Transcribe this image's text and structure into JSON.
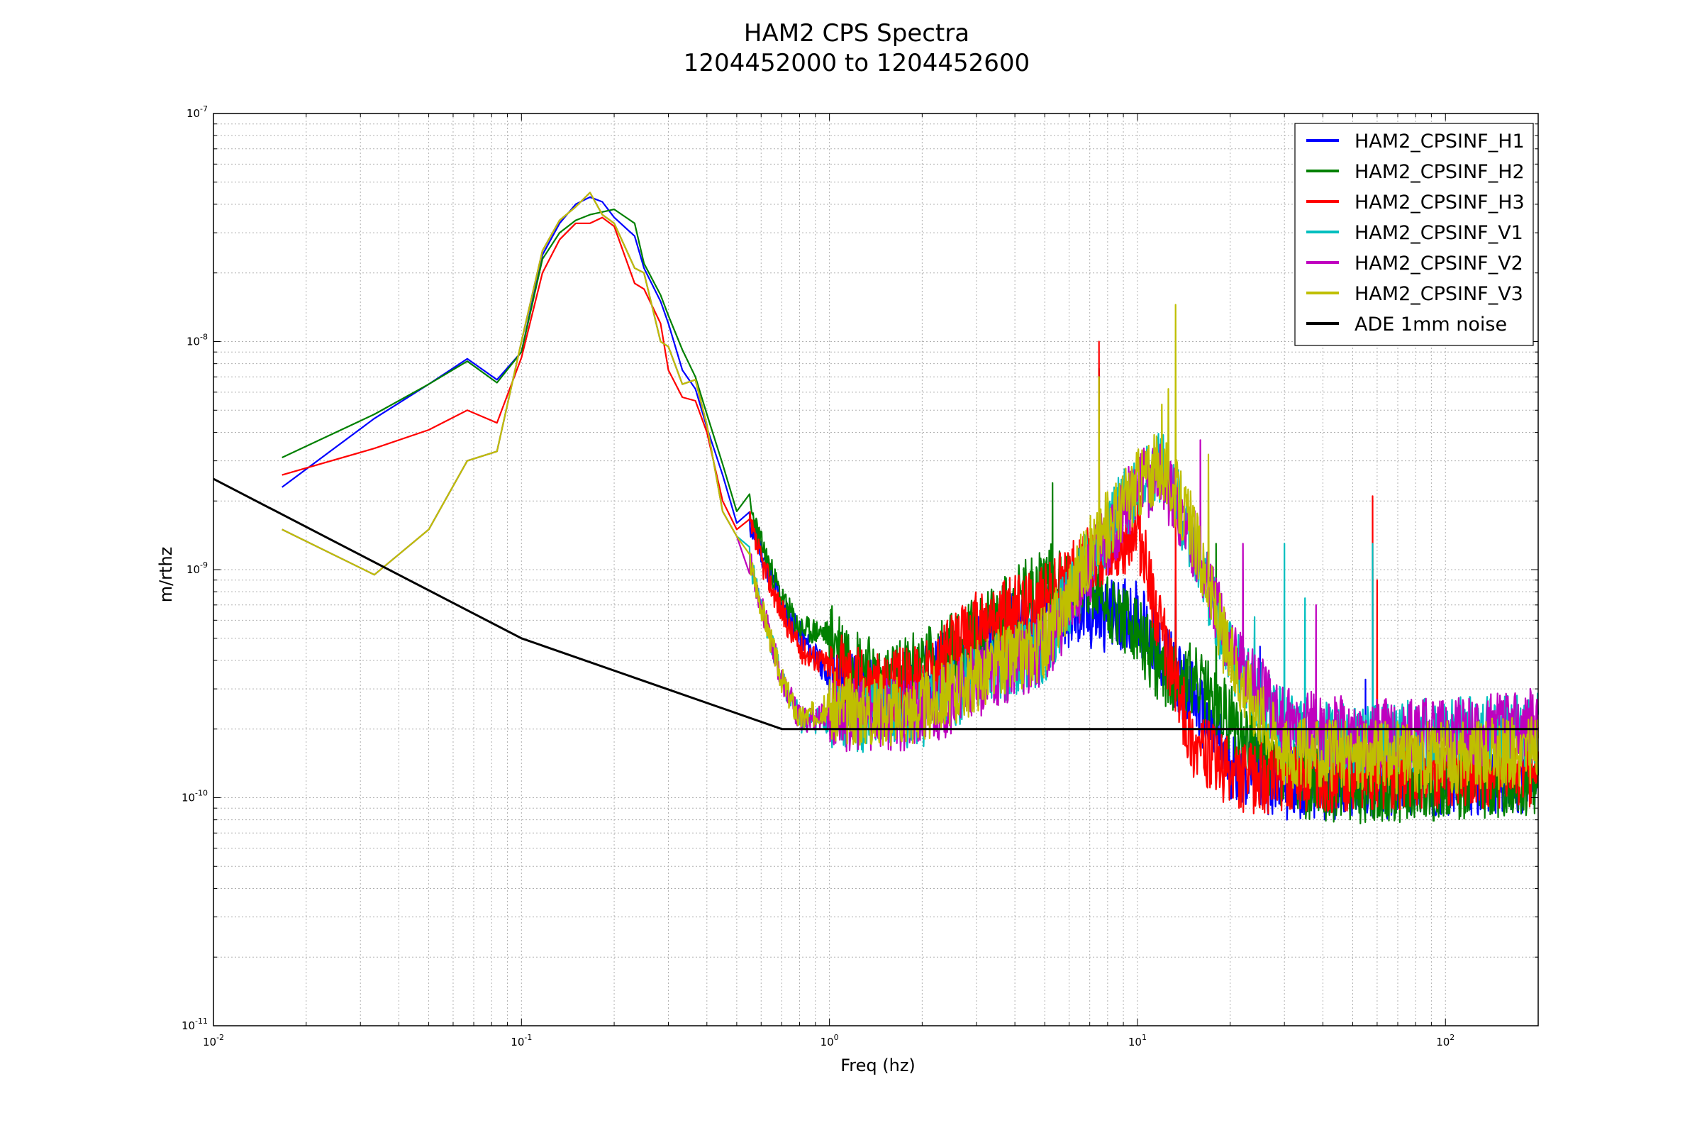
{
  "chart_data": {
    "type": "line",
    "title_line1": "HAM2 CPS Spectra",
    "title_line2": "1204452000 to 1204452600",
    "xlabel": "Freq (hz)",
    "ylabel": "m/rthz",
    "xscale": "log",
    "yscale": "log",
    "xlim": [
      0.01,
      200
    ],
    "ylim": [
      1e-11,
      1e-07
    ],
    "grid": true,
    "legend_position": "top-right",
    "x_ticks": [
      {
        "value": 0.01,
        "base": "10",
        "exp": "-2"
      },
      {
        "value": 0.1,
        "base": "10",
        "exp": "-1"
      },
      {
        "value": 1,
        "base": "10",
        "exp": "0"
      },
      {
        "value": 10,
        "base": "10",
        "exp": "1"
      },
      {
        "value": 100,
        "base": "10",
        "exp": "2"
      }
    ],
    "y_ticks": [
      {
        "value": 1e-11,
        "base": "10",
        "exp": "-11"
      },
      {
        "value": 1e-10,
        "base": "10",
        "exp": "-10"
      },
      {
        "value": 1e-09,
        "base": "10",
        "exp": "-9"
      },
      {
        "value": 1e-08,
        "base": "10",
        "exp": "-8"
      },
      {
        "value": 1e-07,
        "base": "10",
        "exp": "-7"
      }
    ],
    "series": [
      {
        "name": "HAM2_CPSINF_H1",
        "color": "#0000ff",
        "seed": 11,
        "points": [
          [
            0.0167,
            2.3e-09
          ],
          [
            0.0333,
            4.6e-09
          ],
          [
            0.05,
            6.5e-09
          ],
          [
            0.0667,
            8.4e-09
          ],
          [
            0.0833,
            6.8e-09
          ],
          [
            0.1,
            9e-09
          ],
          [
            0.117,
            2.4e-08
          ],
          [
            0.133,
            3.3e-08
          ],
          [
            0.15,
            4e-08
          ],
          [
            0.167,
            4.3e-08
          ],
          [
            0.183,
            4.1e-08
          ],
          [
            0.2,
            3.5e-08
          ],
          [
            0.233,
            2.9e-08
          ],
          [
            0.25,
            2.1e-08
          ],
          [
            0.283,
            1.5e-08
          ],
          [
            0.3,
            1.2e-08
          ],
          [
            0.333,
            7.5e-09
          ],
          [
            0.367,
            6.2e-09
          ],
          [
            0.4,
            4.2e-09
          ],
          [
            0.45,
            2.6e-09
          ],
          [
            0.5,
            1.6e-09
          ],
          [
            0.55,
            1.6e-09
          ],
          [
            0.6,
            1.2e-09
          ],
          [
            0.7,
            7e-10
          ],
          [
            0.8,
            5.2e-10
          ],
          [
            1.0,
            3.4e-10
          ],
          [
            1.5,
            2.7e-10
          ],
          [
            2.0,
            3.3e-10
          ],
          [
            3.0,
            4.6e-10
          ],
          [
            5.0,
            6.5e-10
          ],
          [
            7.0,
            6.2e-10
          ],
          [
            10.0,
            6.4e-10
          ],
          [
            12.0,
            4.2e-10
          ],
          [
            15.0,
            2.8e-10
          ],
          [
            20.0,
            1.4e-10
          ],
          [
            30.0,
            1.15e-10
          ],
          [
            50.0,
            1.15e-10
          ],
          [
            100.0,
            1.2e-10
          ],
          [
            200.0,
            1.25e-10
          ]
        ],
        "spikes": [
          [
            7.5,
            7.6e-09
          ],
          [
            13.3,
            1.7e-09
          ],
          [
            25,
            4.6e-10
          ],
          [
            55,
            3.3e-10
          ]
        ]
      },
      {
        "name": "HAM2_CPSINF_H2",
        "color": "#008000",
        "seed": 23,
        "points": [
          [
            0.0167,
            3.1e-09
          ],
          [
            0.0333,
            4.8e-09
          ],
          [
            0.05,
            6.5e-09
          ],
          [
            0.0667,
            8.2e-09
          ],
          [
            0.0833,
            6.6e-09
          ],
          [
            0.1,
            9e-09
          ],
          [
            0.117,
            2.3e-08
          ],
          [
            0.133,
            3e-08
          ],
          [
            0.15,
            3.4e-08
          ],
          [
            0.167,
            3.6e-08
          ],
          [
            0.183,
            3.7e-08
          ],
          [
            0.2,
            3.8e-08
          ],
          [
            0.233,
            3.3e-08
          ],
          [
            0.25,
            2.2e-08
          ],
          [
            0.283,
            1.6e-08
          ],
          [
            0.3,
            1.3e-08
          ],
          [
            0.333,
            9.2e-09
          ],
          [
            0.367,
            7e-09
          ],
          [
            0.4,
            4.8e-09
          ],
          [
            0.45,
            2.9e-09
          ],
          [
            0.5,
            1.8e-09
          ],
          [
            0.55,
            1.9e-09
          ],
          [
            0.6,
            1.3e-09
          ],
          [
            0.7,
            7.5e-10
          ],
          [
            0.8,
            5.5e-10
          ],
          [
            1.0,
            5.2e-10
          ],
          [
            1.5,
            3.2e-10
          ],
          [
            2.0,
            3.9e-10
          ],
          [
            3.0,
            5.2e-10
          ],
          [
            5.0,
            9.2e-10
          ],
          [
            7.0,
            8.5e-10
          ],
          [
            10.0,
            5.2e-10
          ],
          [
            12.0,
            3.6e-10
          ],
          [
            15.0,
            3.3e-10
          ],
          [
            20.0,
            2.2e-10
          ],
          [
            30.0,
            1.2e-10
          ],
          [
            50.0,
            1.1e-10
          ],
          [
            100.0,
            1.15e-10
          ],
          [
            200.0,
            1.2e-10
          ]
        ],
        "spikes": [
          [
            5.3,
            2.4e-09
          ],
          [
            7.5,
            7.6e-09
          ],
          [
            13.3,
            1.8e-09
          ],
          [
            18,
            1.3e-09
          ]
        ]
      },
      {
        "name": "HAM2_CPSINF_H3",
        "color": "#ff0000",
        "seed": 37,
        "points": [
          [
            0.0167,
            2.6e-09
          ],
          [
            0.0333,
            3.4e-09
          ],
          [
            0.05,
            4.1e-09
          ],
          [
            0.0667,
            5e-09
          ],
          [
            0.0833,
            4.4e-09
          ],
          [
            0.1,
            8.5e-09
          ],
          [
            0.117,
            2e-08
          ],
          [
            0.133,
            2.8e-08
          ],
          [
            0.15,
            3.3e-08
          ],
          [
            0.167,
            3.3e-08
          ],
          [
            0.183,
            3.5e-08
          ],
          [
            0.2,
            3.2e-08
          ],
          [
            0.233,
            1.8e-08
          ],
          [
            0.25,
            1.7e-08
          ],
          [
            0.283,
            1.2e-08
          ],
          [
            0.3,
            7.5e-09
          ],
          [
            0.333,
            5.7e-09
          ],
          [
            0.367,
            5.5e-09
          ],
          [
            0.4,
            4e-09
          ],
          [
            0.45,
            2e-09
          ],
          [
            0.5,
            1.5e-09
          ],
          [
            0.55,
            1.6e-09
          ],
          [
            0.6,
            1.1e-09
          ],
          [
            0.7,
            6.5e-10
          ],
          [
            0.8,
            4.5e-10
          ],
          [
            1.0,
            3.8e-10
          ],
          [
            1.5,
            3e-10
          ],
          [
            2.0,
            3.4e-10
          ],
          [
            3.0,
            5.6e-10
          ],
          [
            5.0,
            7.5e-10
          ],
          [
            7.0,
            1.1e-09
          ],
          [
            10.0,
            1.5e-09
          ],
          [
            12.0,
            5.2e-10
          ],
          [
            15.0,
            1.8e-10
          ],
          [
            20.0,
            1.25e-10
          ],
          [
            30.0,
            1.2e-10
          ],
          [
            50.0,
            1.25e-10
          ],
          [
            100.0,
            1.3e-10
          ],
          [
            200.0,
            1.3e-10
          ]
        ],
        "spikes": [
          [
            7.5,
            1e-08
          ],
          [
            10.2,
            2.1e-09
          ],
          [
            13.3,
            2.3e-09
          ],
          [
            58,
            2.1e-09
          ],
          [
            60,
            9e-10
          ]
        ]
      },
      {
        "name": "HAM2_CPSINF_V1",
        "color": "#00bfbf",
        "seed": 41,
        "points": [
          [
            0.0167,
            1.5e-09
          ],
          [
            0.0333,
            9.5e-10
          ],
          [
            0.05,
            1.5e-09
          ],
          [
            0.0667,
            3e-09
          ],
          [
            0.0833,
            3.3e-09
          ],
          [
            0.1,
            1e-08
          ],
          [
            0.117,
            2.5e-08
          ],
          [
            0.133,
            3.4e-08
          ],
          [
            0.15,
            3.9e-08
          ],
          [
            0.167,
            4.5e-08
          ],
          [
            0.183,
            3.6e-08
          ],
          [
            0.2,
            3.3e-08
          ],
          [
            0.233,
            2.1e-08
          ],
          [
            0.25,
            2e-08
          ],
          [
            0.283,
            1e-08
          ],
          [
            0.3,
            9.5e-09
          ],
          [
            0.333,
            6.5e-09
          ],
          [
            0.367,
            6.8e-09
          ],
          [
            0.4,
            4.3e-09
          ],
          [
            0.45,
            1.8e-09
          ],
          [
            0.5,
            1.4e-09
          ],
          [
            0.55,
            1.1e-09
          ],
          [
            0.6,
            7e-10
          ],
          [
            0.7,
            3.3e-10
          ],
          [
            0.8,
            2.2e-10
          ],
          [
            1.0,
            2.2e-10
          ],
          [
            1.5,
            2.3e-10
          ],
          [
            2.0,
            2.4e-10
          ],
          [
            3.0,
            3.3e-10
          ],
          [
            5.0,
            4.6e-10
          ],
          [
            7.0,
            1.1e-09
          ],
          [
            10.0,
            2.4e-09
          ],
          [
            12.0,
            2.8e-09
          ],
          [
            15.0,
            1.4e-09
          ],
          [
            20.0,
            4.1e-10
          ],
          [
            30.0,
            2e-10
          ],
          [
            50.0,
            1.8e-10
          ],
          [
            100.0,
            1.9e-10
          ],
          [
            200.0,
            2e-10
          ]
        ],
        "spikes": [
          [
            24,
            6.2e-10
          ],
          [
            30,
            1.3e-09
          ],
          [
            35,
            7.5e-10
          ],
          [
            58,
            1.3e-09
          ]
        ]
      },
      {
        "name": "HAM2_CPSINF_V2",
        "color": "#bf00bf",
        "seed": 53,
        "points": [
          [
            0.0167,
            1.5e-09
          ],
          [
            0.0333,
            9.5e-10
          ],
          [
            0.05,
            1.5e-09
          ],
          [
            0.0667,
            3e-09
          ],
          [
            0.0833,
            3.3e-09
          ],
          [
            0.1,
            1e-08
          ],
          [
            0.117,
            2.5e-08
          ],
          [
            0.133,
            3.4e-08
          ],
          [
            0.15,
            3.9e-08
          ],
          [
            0.167,
            4.5e-08
          ],
          [
            0.183,
            3.6e-08
          ],
          [
            0.2,
            3.3e-08
          ],
          [
            0.233,
            2.1e-08
          ],
          [
            0.25,
            2e-08
          ],
          [
            0.283,
            1e-08
          ],
          [
            0.3,
            9.5e-09
          ],
          [
            0.333,
            6.5e-09
          ],
          [
            0.367,
            6.8e-09
          ],
          [
            0.4,
            4.3e-09
          ],
          [
            0.45,
            1.8e-09
          ],
          [
            0.5,
            1.4e-09
          ],
          [
            0.55,
            1.1e-09
          ],
          [
            0.6,
            7e-10
          ],
          [
            0.7,
            3.3e-10
          ],
          [
            0.8,
            2.2e-10
          ],
          [
            1.0,
            2.3e-10
          ],
          [
            1.5,
            2.3e-10
          ],
          [
            2.0,
            2.3e-10
          ],
          [
            3.0,
            3.2e-10
          ],
          [
            5.0,
            4.5e-10
          ],
          [
            7.0,
            1e-09
          ],
          [
            10.0,
            2.3e-09
          ],
          [
            12.0,
            2.6e-09
          ],
          [
            15.0,
            1.4e-09
          ],
          [
            20.0,
            4.6e-10
          ],
          [
            30.0,
            2.1e-10
          ],
          [
            50.0,
            1.9e-10
          ],
          [
            100.0,
            1.9e-10
          ],
          [
            200.0,
            2.1e-10
          ]
        ],
        "spikes": [
          [
            16,
            3.7e-09
          ],
          [
            22,
            1.3e-09
          ],
          [
            38,
            7e-10
          ]
        ]
      },
      {
        "name": "HAM2_CPSINF_V3",
        "color": "#bfbf00",
        "seed": 67,
        "points": [
          [
            0.0167,
            1.5e-09
          ],
          [
            0.0333,
            9.5e-10
          ],
          [
            0.05,
            1.5e-09
          ],
          [
            0.0667,
            3e-09
          ],
          [
            0.0833,
            3.3e-09
          ],
          [
            0.1,
            1e-08
          ],
          [
            0.117,
            2.5e-08
          ],
          [
            0.133,
            3.4e-08
          ],
          [
            0.15,
            3.9e-08
          ],
          [
            0.167,
            4.5e-08
          ],
          [
            0.183,
            3.6e-08
          ],
          [
            0.2,
            3.3e-08
          ],
          [
            0.233,
            2.1e-08
          ],
          [
            0.25,
            2e-08
          ],
          [
            0.283,
            1e-08
          ],
          [
            0.3,
            9.5e-09
          ],
          [
            0.333,
            6.5e-09
          ],
          [
            0.367,
            6.8e-09
          ],
          [
            0.4,
            4.3e-09
          ],
          [
            0.45,
            1.8e-09
          ],
          [
            0.5,
            1.4e-09
          ],
          [
            0.55,
            1.1e-09
          ],
          [
            0.6,
            7e-10
          ],
          [
            0.7,
            3.3e-10
          ],
          [
            0.8,
            2.2e-10
          ],
          [
            1.0,
            2.5e-10
          ],
          [
            1.5,
            2.4e-10
          ],
          [
            2.0,
            2.5e-10
          ],
          [
            3.0,
            3.4e-10
          ],
          [
            5.0,
            4.8e-10
          ],
          [
            7.0,
            1.2e-09
          ],
          [
            10.0,
            2.4e-09
          ],
          [
            12.0,
            2.9e-09
          ],
          [
            15.0,
            1.5e-09
          ],
          [
            20.0,
            4e-10
          ],
          [
            30.0,
            1.6e-10
          ],
          [
            50.0,
            1.5e-10
          ],
          [
            100.0,
            1.5e-10
          ],
          [
            200.0,
            1.6e-10
          ]
        ],
        "spikes": [
          [
            7.5,
            7e-09
          ],
          [
            13.3,
            1.45e-08
          ],
          [
            12.6,
            6.2e-09
          ],
          [
            12,
            5.3e-09
          ],
          [
            17,
            3.2e-09
          ]
        ]
      },
      {
        "name": "ADE 1mm noise",
        "color": "#000000",
        "seed": 0,
        "points": [
          [
            0.01,
            2.5e-09
          ],
          [
            0.1,
            5e-10
          ],
          [
            0.7,
            2e-10
          ],
          [
            200,
            2e-10
          ]
        ],
        "spikes": []
      }
    ]
  }
}
